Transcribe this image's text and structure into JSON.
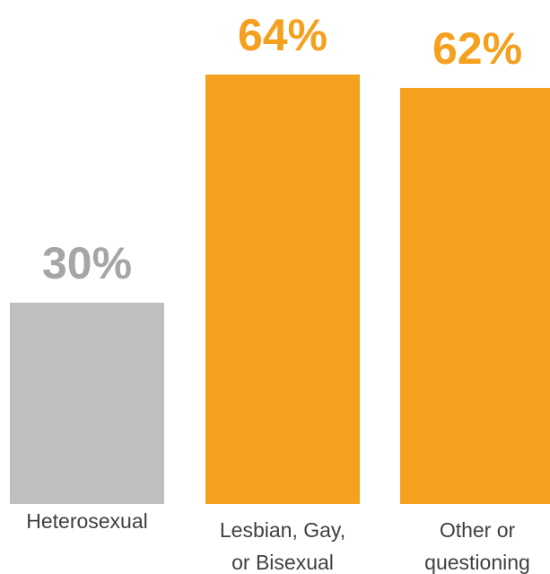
{
  "chart_data": {
    "type": "bar",
    "title": "",
    "xlabel": "",
    "ylabel": "",
    "ylim": [
      0,
      64
    ],
    "grid": false,
    "legend": "none",
    "unit": "%",
    "categories": [
      [
        "Heterosexual"
      ],
      [
        "Lesbian, Gay,",
        "or Bisexual"
      ],
      [
        "Other or",
        "questioning"
      ]
    ],
    "values": [
      30,
      64,
      62
    ],
    "value_labels": [
      "30%",
      "64%",
      "62%"
    ],
    "colors": [
      "#BFBFBF",
      "#F5A01E",
      "#F5A01E"
    ],
    "label_colors": [
      "#A6A6A6",
      "#F5A01E",
      "#F5A01E"
    ]
  }
}
